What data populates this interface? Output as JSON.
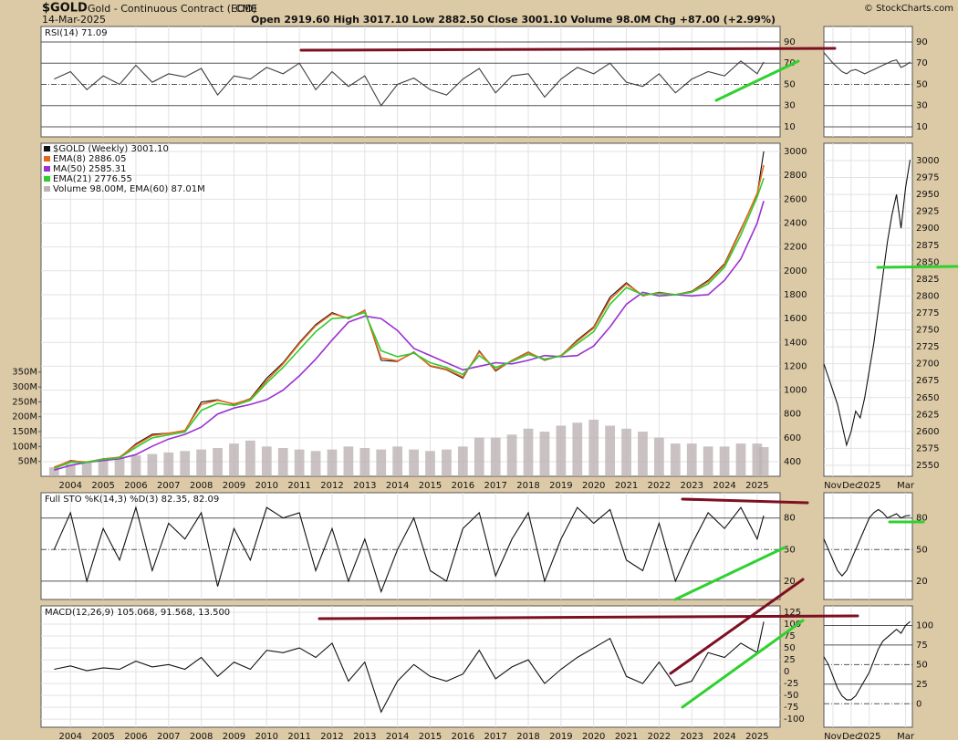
{
  "header": {
    "symbol": "$GOLD",
    "name": "Gold - Continuous Contract (EOD)",
    "exchange": "CME",
    "date": "14-Mar-2025",
    "quote": "Open 2919.60 High 3017.10 Low 2882.50 Close 3001.10 Volume 98.0M Chg +87.00 (+2.99%)",
    "credit": "© StockCharts.com"
  },
  "chart_data": [
    {
      "type": "line",
      "title": "RSI(14) 71.09",
      "grid": true,
      "x": [
        2003.5,
        2004,
        2004.5,
        2005,
        2005.5,
        2006,
        2006.5,
        2007,
        2007.5,
        2008,
        2008.5,
        2009,
        2009.5,
        2010,
        2010.5,
        2011,
        2011.5,
        2012,
        2012.5,
        2013,
        2013.5,
        2014,
        2014.5,
        2015,
        2015.5,
        2016,
        2016.5,
        2017,
        2017.5,
        2018,
        2018.5,
        2019,
        2019.5,
        2020,
        2020.5,
        2021,
        2021.5,
        2022,
        2022.5,
        2023,
        2023.5,
        2024,
        2024.5,
        2025,
        2025.2
      ],
      "xlim": [
        2003.1,
        2025.7
      ],
      "xticks": [
        2004,
        2005,
        2006,
        2007,
        2008,
        2009,
        2010,
        2011,
        2012,
        2013,
        2014,
        2015,
        2016,
        2017,
        2018,
        2019,
        2020,
        2021,
        2022,
        2023,
        2024,
        2025
      ],
      "ylim": [
        0.5,
        104.6
      ],
      "yticks": [
        10,
        30,
        50,
        70,
        90
      ],
      "series": [
        {
          "color": "#3c3c3c",
          "values": [
            55,
            62,
            45,
            58,
            50,
            68,
            52,
            60,
            57,
            65,
            40,
            58,
            55,
            66,
            60,
            70,
            45,
            62,
            48,
            58,
            30,
            50,
            56,
            45,
            40,
            55,
            65,
            42,
            58,
            60,
            38,
            55,
            66,
            60,
            70,
            52,
            48,
            60,
            42,
            55,
            62,
            58,
            72,
            60,
            71.09
          ]
        }
      ]
    },
    {
      "type": "line",
      "grid": true,
      "xlabels": true,
      "x": [
        2003.5,
        2004,
        2004.5,
        2005,
        2005.5,
        2006,
        2006.5,
        2007,
        2007.5,
        2008,
        2008.5,
        2009,
        2009.5,
        2010,
        2010.5,
        2011,
        2011.5,
        2012,
        2012.5,
        2013,
        2013.5,
        2014,
        2014.5,
        2015,
        2015.5,
        2016,
        2016.5,
        2017,
        2017.5,
        2018,
        2018.5,
        2019,
        2019.5,
        2020,
        2020.5,
        2021,
        2021.5,
        2022,
        2022.5,
        2023,
        2023.5,
        2024,
        2024.5,
        2025,
        2025.2
      ],
      "xlim": [
        2003.1,
        2025.7
      ],
      "xticks": [
        2004,
        2005,
        2006,
        2007,
        2008,
        2009,
        2010,
        2011,
        2012,
        2013,
        2014,
        2015,
        2016,
        2017,
        2018,
        2019,
        2020,
        2021,
        2022,
        2023,
        2024,
        2025
      ],
      "ylim": [
        278,
        3069
      ],
      "yticks": [
        400,
        600,
        800,
        1000,
        1200,
        1400,
        1600,
        1800,
        2000,
        2200,
        2400,
        2600,
        2800,
        3000
      ],
      "y2lim": [
        0,
        1118
      ],
      "y2ticks": [
        {
          "value": 50,
          "label": "50M"
        },
        {
          "value": 100,
          "label": "100M"
        },
        {
          "value": 150,
          "label": "150M"
        },
        {
          "value": 200,
          "label": "200M"
        },
        {
          "value": 250,
          "label": "250M"
        },
        {
          "value": 300,
          "label": "300M"
        },
        {
          "value": 350,
          "label": "350M"
        }
      ],
      "series": [
        {
          "name": "$GOLD (Weekly) 3001.10",
          "color": "#111111",
          "values": [
            350,
            410,
            395,
            425,
            435,
            550,
            630,
            640,
            660,
            900,
            920,
            880,
            930,
            1100,
            1230,
            1400,
            1550,
            1650,
            1600,
            1670,
            1250,
            1240,
            1320,
            1200,
            1170,
            1100,
            1330,
            1160,
            1250,
            1320,
            1250,
            1290,
            1420,
            1530,
            1780,
            1900,
            1790,
            1820,
            1800,
            1830,
            1920,
            2060,
            2350,
            2640,
            3001.1
          ]
        },
        {
          "name": "EMA(8) 2886.05",
          "color": "#e8661a",
          "values": [
            355,
            405,
            398,
            423,
            438,
            540,
            620,
            638,
            662,
            880,
            915,
            885,
            925,
            1080,
            1220,
            1390,
            1540,
            1640,
            1605,
            1665,
            1270,
            1245,
            1315,
            1205,
            1175,
            1110,
            1320,
            1170,
            1248,
            1315,
            1255,
            1290,
            1410,
            1520,
            1760,
            1890,
            1795,
            1815,
            1800,
            1825,
            1910,
            2050,
            2340,
            2650,
            2886.05
          ]
        },
        {
          "name": "MA(50) 2585.31",
          "color": "#9b30d0",
          "values": [
            330,
            370,
            395,
            410,
            425,
            460,
            530,
            590,
            630,
            690,
            800,
            850,
            880,
            920,
            1000,
            1120,
            1260,
            1420,
            1570,
            1620,
            1600,
            1500,
            1350,
            1290,
            1230,
            1170,
            1200,
            1230,
            1220,
            1250,
            1290,
            1280,
            1290,
            1370,
            1530,
            1720,
            1820,
            1790,
            1800,
            1790,
            1800,
            1920,
            2100,
            2400,
            2585.31
          ]
        },
        {
          "name": "EMA(21) 2776.55",
          "color": "#2ecc2e",
          "values": [
            345,
            395,
            395,
            420,
            432,
            520,
            600,
            625,
            650,
            830,
            890,
            870,
            915,
            1060,
            1190,
            1340,
            1490,
            1600,
            1610,
            1650,
            1330,
            1280,
            1310,
            1230,
            1190,
            1130,
            1290,
            1190,
            1240,
            1300,
            1260,
            1285,
            1390,
            1490,
            1720,
            1860,
            1800,
            1810,
            1800,
            1820,
            1890,
            2030,
            2300,
            2620,
            2776.55
          ]
        },
        {
          "name": "Volume 98.00M, EMA(60) 87.01M",
          "color": "#bdb3b3",
          "axis": "y2",
          "style": "bar",
          "values": [
            30,
            40,
            50,
            55,
            60,
            70,
            75,
            80,
            85,
            90,
            95,
            110,
            120,
            100,
            95,
            90,
            85,
            90,
            100,
            95,
            90,
            100,
            90,
            85,
            90,
            100,
            130,
            130,
            140,
            160,
            150,
            170,
            180,
            190,
            170,
            160,
            150,
            130,
            110,
            110,
            100,
            100,
            110,
            110,
            98
          ]
        }
      ]
    },
    {
      "type": "line",
      "title": "Full STO %K(14,3) %D(3) 82.35, 82.09",
      "grid": true,
      "x": [
        2003.5,
        2004,
        2004.5,
        2005,
        2005.5,
        2006,
        2006.5,
        2007,
        2007.5,
        2008,
        2008.5,
        2009,
        2009.5,
        2010,
        2010.5,
        2011,
        2011.5,
        2012,
        2012.5,
        2013,
        2013.5,
        2014,
        2014.5,
        2015,
        2015.5,
        2016,
        2016.5,
        2017,
        2017.5,
        2018,
        2018.5,
        2019,
        2019.5,
        2020,
        2020.5,
        2021,
        2021.5,
        2022,
        2022.5,
        2023,
        2023.5,
        2024,
        2024.5,
        2025,
        2025.2
      ],
      "xlim": [
        2003.1,
        2025.7
      ],
      "xticks": [
        2004,
        2005,
        2006,
        2007,
        2008,
        2009,
        2010,
        2011,
        2012,
        2013,
        2014,
        2015,
        2016,
        2017,
        2018,
        2019,
        2020,
        2021,
        2022,
        2023,
        2024,
        2025
      ],
      "ylim": [
        2.6,
        104
      ],
      "yticks": [
        20,
        50,
        80
      ],
      "series": [
        {
          "color": "#111111",
          "values": [
            50,
            85,
            20,
            70,
            40,
            90,
            30,
            75,
            60,
            85,
            15,
            70,
            40,
            90,
            80,
            85,
            30,
            70,
            20,
            60,
            10,
            50,
            80,
            30,
            20,
            70,
            85,
            25,
            60,
            85,
            20,
            60,
            90,
            75,
            88,
            40,
            30,
            75,
            20,
            55,
            85,
            70,
            90,
            60,
            82.35
          ]
        }
      ]
    },
    {
      "type": "line",
      "title": "MACD(12,26,9) 105.068, 91.568, 13.500",
      "grid": true,
      "xlabels": true,
      "x": [
        2003.5,
        2004,
        2004.5,
        2005,
        2005.5,
        2006,
        2006.5,
        2007,
        2007.5,
        2008,
        2008.5,
        2009,
        2009.5,
        2010,
        2010.5,
        2011,
        2011.5,
        2012,
        2012.5,
        2013,
        2013.5,
        2014,
        2014.5,
        2015,
        2015.5,
        2016,
        2016.5,
        2017,
        2017.5,
        2018,
        2018.5,
        2019,
        2019.5,
        2020,
        2020.5,
        2021,
        2021.5,
        2022,
        2022.5,
        2023,
        2023.5,
        2024,
        2024.5,
        2025,
        2025.2
      ],
      "xlim": [
        2003.1,
        2025.7
      ],
      "xticks": [
        2004,
        2005,
        2006,
        2007,
        2008,
        2009,
        2010,
        2011,
        2012,
        2013,
        2014,
        2015,
        2016,
        2017,
        2018,
        2019,
        2020,
        2021,
        2022,
        2023,
        2024,
        2025
      ],
      "ylim": [
        -117,
        138.5
      ],
      "yticks": [
        -100,
        -75,
        -50,
        -25,
        0,
        25,
        50,
        75,
        100,
        125
      ],
      "series": [
        {
          "color": "#111111",
          "values": [
            5,
            12,
            2,
            8,
            5,
            22,
            10,
            15,
            5,
            30,
            -10,
            20,
            5,
            45,
            40,
            50,
            30,
            60,
            -20,
            20,
            -85,
            -20,
            15,
            -10,
            -20,
            -5,
            45,
            -15,
            10,
            25,
            -25,
            5,
            30,
            50,
            70,
            -10,
            -25,
            20,
            -30,
            -20,
            40,
            30,
            60,
            40,
            105.068
          ]
        }
      ]
    },
    {
      "type": "line",
      "grid": true,
      "x": [
        0,
        1,
        2,
        3,
        4,
        5,
        6,
        7,
        8,
        9,
        10,
        11,
        12,
        13,
        14,
        15,
        16,
        17,
        18,
        19
      ],
      "xlim": [
        0,
        19.5
      ],
      "xticks": [
        {
          "value": 2,
          "label": "Nov"
        },
        {
          "value": 6,
          "label": "Dec"
        },
        {
          "value": 10,
          "label": "2025"
        },
        {
          "value": 18,
          "label": "Mar"
        }
      ],
      "ylim": [
        0.5,
        104.6
      ],
      "yticks": [
        10,
        30,
        50,
        70,
        90
      ],
      "series": [
        {
          "color": "#3c3c3c",
          "values": [
            80,
            75,
            70,
            66,
            62,
            60,
            63,
            64,
            62,
            60,
            62,
            64,
            66,
            68,
            70,
            72,
            73,
            66,
            68,
            71.09
          ]
        }
      ]
    },
    {
      "type": "line",
      "grid": true,
      "xlabels": true,
      "x": [
        0,
        1,
        2,
        3,
        4,
        5,
        6,
        7,
        8,
        9,
        10,
        11,
        12,
        13,
        14,
        15,
        16,
        17,
        18,
        19
      ],
      "xlim": [
        0,
        19.5
      ],
      "xticks": [
        {
          "value": 2,
          "label": "Nov"
        },
        {
          "value": 6,
          "label": "Dec"
        },
        {
          "value": 10,
          "label": "2025"
        },
        {
          "value": 18,
          "label": "Mar"
        }
      ],
      "ylim": [
        2533.8,
        3025.6
      ],
      "yticks": [
        2550,
        2575,
        2600,
        2625,
        2650,
        2675,
        2700,
        2725,
        2750,
        2775,
        2800,
        2825,
        2850,
        2875,
        2900,
        2925,
        2950,
        2975,
        3000
      ],
      "series": [
        {
          "color": "#111111",
          "values": [
            2700,
            2680,
            2660,
            2640,
            2610,
            2580,
            2600,
            2630,
            2620,
            2650,
            2690,
            2730,
            2780,
            2830,
            2880,
            2920,
            2950,
            2900,
            2960,
            3001.1
          ]
        }
      ]
    },
    {
      "type": "line",
      "grid": true,
      "x": [
        0,
        1,
        2,
        3,
        4,
        5,
        6,
        7,
        8,
        9,
        10,
        11,
        12,
        13,
        14,
        15,
        16,
        17,
        18,
        19
      ],
      "xlim": [
        0,
        19.5
      ],
      "xticks": [
        {
          "value": 2,
          "label": "Nov"
        },
        {
          "value": 6,
          "label": "Dec"
        },
        {
          "value": 10,
          "label": "2025"
        },
        {
          "value": 18,
          "label": "Mar"
        }
      ],
      "ylim": [
        2.6,
        104
      ],
      "yticks": [
        20,
        50,
        80
      ],
      "series": [
        {
          "color": "#111111",
          "values": [
            60,
            50,
            40,
            30,
            25,
            30,
            40,
            50,
            60,
            70,
            80,
            85,
            88,
            85,
            80,
            82,
            84,
            80,
            82,
            82.35
          ]
        }
      ]
    },
    {
      "type": "line",
      "grid": true,
      "xlabels": true,
      "x": [
        0,
        1,
        2,
        3,
        4,
        5,
        6,
        7,
        8,
        9,
        10,
        11,
        12,
        13,
        14,
        15,
        16,
        17,
        18,
        19
      ],
      "xlim": [
        0,
        19.5
      ],
      "xticks": [
        {
          "value": 2,
          "label": "Nov"
        },
        {
          "value": 6,
          "label": "Dec"
        },
        {
          "value": 10,
          "label": "2025"
        },
        {
          "value": 18,
          "label": "Mar"
        }
      ],
      "ylim": [
        -30,
        125
      ],
      "yticks": [
        0,
        25,
        50,
        75,
        100
      ],
      "series": [
        {
          "color": "#111111",
          "values": [
            60,
            50,
            35,
            20,
            10,
            5,
            5,
            10,
            20,
            30,
            40,
            55,
            70,
            80,
            85,
            90,
            95,
            90,
            100,
            105.068
          ]
        }
      ]
    }
  ]
}
